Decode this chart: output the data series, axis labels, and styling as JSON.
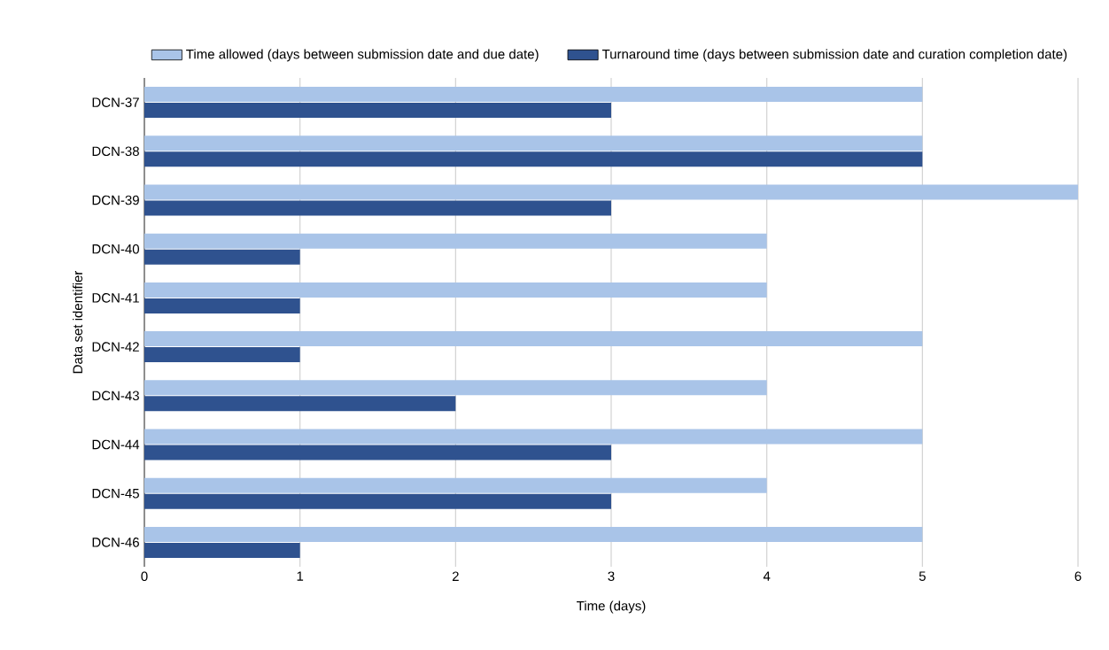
{
  "chart_data": {
    "type": "bar",
    "orientation": "horizontal",
    "xlabel": "Time (days)",
    "ylabel": "Data set identifier",
    "categories": [
      "DCN-37",
      "DCN-38",
      "DCN-39",
      "DCN-40",
      "DCN-41",
      "DCN-42",
      "DCN-43",
      "DCN-44",
      "DCN-45",
      "DCN-46"
    ],
    "series": [
      {
        "name": "Time allowed (days between submission date and due date)",
        "color": "#a9c4e8",
        "values": [
          5,
          5,
          6,
          4,
          4,
          5,
          4,
          5,
          4,
          5
        ]
      },
      {
        "name": "Turnaround time (days between submission date and curation completion date)",
        "color": "#2f528f",
        "values": [
          3,
          5,
          3,
          1,
          1,
          1,
          2,
          3,
          3,
          1
        ]
      }
    ],
    "xlim": [
      0,
      6
    ],
    "xticks": [
      0,
      1,
      2,
      3,
      4,
      5,
      6
    ],
    "grid": "x",
    "legend": "top"
  }
}
